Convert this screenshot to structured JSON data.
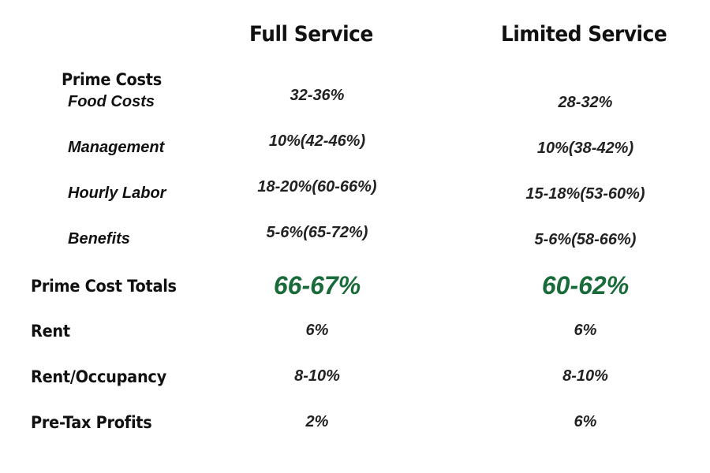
{
  "headers": {
    "full_service": "Full Service",
    "limited_service": "Limited Service"
  },
  "prime_costs": {
    "label": "Prime Costs",
    "rows": [
      {
        "label": "Food Costs",
        "full": "32-36%",
        "limited": "28-32%"
      },
      {
        "label": "Management",
        "full": "10%(42-46%)",
        "limited": "10%(38-42%)"
      },
      {
        "label": "Hourly Labor",
        "full": "18-20%(60-66%)",
        "limited": "15-18%(53-60%)"
      },
      {
        "label": "Benefits",
        "full": "5-6%(65-72%)",
        "limited": "5-6%(58-66%)"
      }
    ]
  },
  "totals": {
    "label": "Prime Cost Totals",
    "full": "66-67%",
    "limited": "60-62%"
  },
  "other_rows": [
    {
      "label": "Rent",
      "full": "6%",
      "limited": "6%"
    },
    {
      "label": "Rent/Occupancy",
      "full": "8-10%",
      "limited": "8-10%"
    },
    {
      "label": "Pre-Tax Profits",
      "full": "2%",
      "limited": "6%"
    }
  ],
  "colors": {
    "text": "#111111",
    "total_accent": "#1a6b3a"
  }
}
